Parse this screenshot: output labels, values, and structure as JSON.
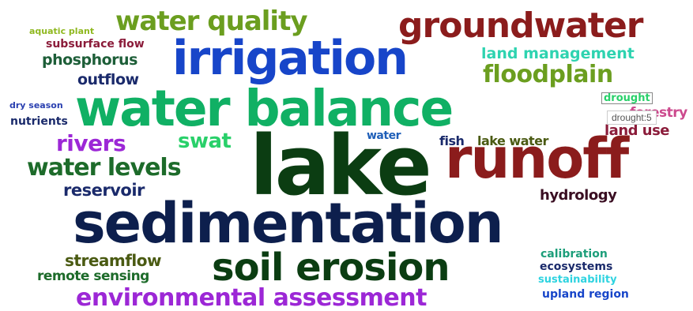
{
  "words": [
    {
      "key": "lake",
      "text": "lake",
      "color": "#0b3d12"
    },
    {
      "key": "sedimentation",
      "text": "sedimentation",
      "color": "#0d1f4d"
    },
    {
      "key": "water_balance",
      "text": "water balance",
      "color": "#10b064"
    },
    {
      "key": "irrigation",
      "text": "irrigation",
      "color": "#1745c9"
    },
    {
      "key": "runoff",
      "text": "runoff",
      "color": "#8b1c1c"
    },
    {
      "key": "groundwater",
      "text": "groundwater",
      "color": "#8b1c1c"
    },
    {
      "key": "soil_erosion",
      "text": "soil erosion",
      "color": "#0b3d12"
    },
    {
      "key": "environmental_assessment",
      "text": "environmental assessment",
      "color": "#9c27d6"
    },
    {
      "key": "water_quality",
      "text": "water quality",
      "color": "#6b9e1f"
    },
    {
      "key": "water_levels",
      "text": "water levels",
      "color": "#1d6b2a"
    },
    {
      "key": "floodplain",
      "text": "floodplain",
      "color": "#6b9e1f"
    },
    {
      "key": "swat",
      "text": "swat",
      "color": "#29d06a"
    },
    {
      "key": "rivers",
      "text": "rivers",
      "color": "#9c27d6"
    },
    {
      "key": "reservoir",
      "text": "reservoir",
      "color": "#1a2a6b"
    },
    {
      "key": "streamflow",
      "text": "streamflow",
      "color": "#4a5a12"
    },
    {
      "key": "remote_sensing",
      "text": "remote sensing",
      "color": "#1d6b2a"
    },
    {
      "key": "phosphorus",
      "text": "phosphorus",
      "color": "#1d5e38"
    },
    {
      "key": "outflow",
      "text": "outflow",
      "color": "#1a2a6b"
    },
    {
      "key": "land_management",
      "text": "land management",
      "color": "#2ed3b0"
    },
    {
      "key": "hydrology",
      "text": "hydrology",
      "color": "#3a0e22"
    },
    {
      "key": "land_use",
      "text": "land use",
      "color": "#8b1c3a"
    },
    {
      "key": "fish",
      "text": "fish",
      "color": "#1a2a6b"
    },
    {
      "key": "lake_water",
      "text": "lake water",
      "color": "#4a5a12"
    },
    {
      "key": "water",
      "text": "water",
      "color": "#1f5fb8"
    },
    {
      "key": "subsurface_flow",
      "text": "subsurface flow",
      "color": "#8b1c3a"
    },
    {
      "key": "aquatic_plant",
      "text": "aquatic plant",
      "color": "#8fb81f"
    },
    {
      "key": "dry_season",
      "text": "dry season",
      "color": "#2a40b0"
    },
    {
      "key": "nutrients",
      "text": "nutrients",
      "color": "#1a2a6b"
    },
    {
      "key": "calibration",
      "text": "calibration",
      "color": "#1d9e7a"
    },
    {
      "key": "ecosystems",
      "text": "ecosystems",
      "color": "#1a2a6b"
    },
    {
      "key": "sustainability",
      "text": "sustainability",
      "color": "#2ed3e0"
    },
    {
      "key": "upland_region",
      "text": "upland region",
      "color": "#1745c9"
    },
    {
      "key": "drought",
      "text": "drought",
      "color": "#29d06a"
    },
    {
      "key": "forestry",
      "text": "forestry",
      "color": "#c42a7a"
    }
  ],
  "tooltip": {
    "text": "drought:5"
  }
}
